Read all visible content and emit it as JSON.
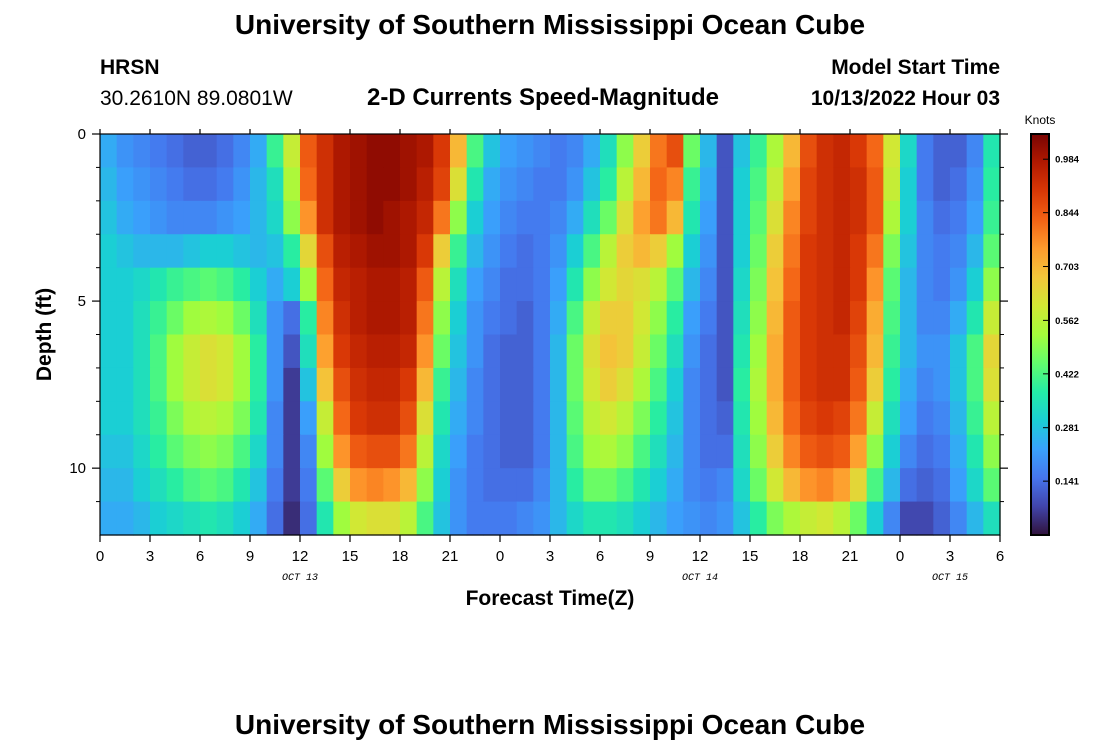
{
  "header": {
    "title": "University of Southern Mississippi Ocean Cube",
    "station_code": "HRSN",
    "coordinates": "30.2610N  89.0801W",
    "subtitle": "2-D Currents Speed-Magnitude",
    "model_start_label": "Model Start Time",
    "model_start_value": "10/13/2022 Hour 03"
  },
  "footer": {
    "title": "University of Southern Mississippi Ocean Cube"
  },
  "chart_data": {
    "type": "heatmap",
    "title": "2-D Currents Speed-Magnitude",
    "xlabel": "Forecast Time(Z)",
    "ylabel": "Depth (ft)",
    "x_unit": "hours since Oct 13 00Z",
    "xlim": [
      0,
      54
    ],
    "ylim": [
      12,
      0
    ],
    "x_tick_values": [
      0,
      3,
      6,
      9,
      12,
      15,
      18,
      21,
      24,
      27,
      30,
      33,
      36,
      39,
      42,
      45,
      48,
      51,
      54
    ],
    "x_tick_labels": [
      "0",
      "3",
      "6",
      "9",
      "12",
      "15",
      "18",
      "21",
      "0",
      "3",
      "6",
      "9",
      "12",
      "15",
      "18",
      "21",
      "0",
      "3",
      "6"
    ],
    "date_labels": [
      {
        "text": "OCT 13",
        "x": 12
      },
      {
        "text": "OCT 14",
        "x": 36
      },
      {
        "text": "OCT 15",
        "x": 51
      }
    ],
    "y_tick_values": [
      0,
      5,
      10
    ],
    "y_tick_labels": [
      "0",
      "5",
      "10"
    ],
    "y_minor_tick_values": [
      1,
      2,
      3,
      4,
      6,
      7,
      8,
      9,
      11
    ],
    "colorbar": {
      "label": "Knots",
      "min": 0.0,
      "max": 1.05,
      "ticks": [
        0.984,
        0.844,
        0.703,
        0.562,
        0.422,
        0.281,
        0.141
      ],
      "tick_labels": [
        "0.984",
        "0.844",
        "0.703",
        "0.562",
        "0.422",
        "0.281",
        "0.141"
      ],
      "colors": [
        "#30123b",
        "#4145ab",
        "#4675ed",
        "#39a2fc",
        "#1bcfd4",
        "#24eca6",
        "#61fc6c",
        "#a4fc3b",
        "#d1e834",
        "#f3c63a",
        "#fe9b2d",
        "#f36315",
        "#d93806",
        "#b11901",
        "#7a0402"
      ]
    },
    "time_columns": [
      0,
      1,
      2,
      3,
      4,
      5,
      6,
      7,
      8,
      9,
      10,
      11,
      12,
      13,
      14,
      15,
      16,
      17,
      18,
      19,
      20,
      21,
      22,
      23,
      24,
      25,
      26,
      27,
      28,
      29,
      30,
      31,
      32,
      33,
      34,
      35,
      36,
      37,
      38,
      39,
      40,
      41,
      42,
      43,
      44,
      45,
      46,
      47,
      48,
      49,
      50,
      51,
      52,
      53
    ],
    "depth_rows": [
      0,
      1,
      2,
      3,
      4,
      5,
      6,
      7,
      8,
      9,
      10,
      11
    ],
    "values": [
      [
        0.24,
        0.2,
        0.18,
        0.16,
        0.14,
        0.12,
        0.12,
        0.14,
        0.18,
        0.24,
        0.4,
        0.58,
        0.84,
        0.92,
        0.98,
        1,
        1.02,
        1.02,
        1,
        0.98,
        0.9,
        0.7,
        0.42,
        0.28,
        0.22,
        0.2,
        0.18,
        0.16,
        0.18,
        0.24,
        0.34,
        0.5,
        0.66,
        0.8,
        0.86,
        0.46,
        0.26,
        0.1,
        0.28,
        0.4,
        0.54,
        0.7,
        0.86,
        0.92,
        0.94,
        0.9,
        0.82,
        0.6,
        0.32,
        0.16,
        0.12,
        0.12,
        0.18,
        0.36
      ],
      [
        0.26,
        0.22,
        0.2,
        0.18,
        0.16,
        0.14,
        0.14,
        0.16,
        0.2,
        0.26,
        0.34,
        0.54,
        0.82,
        0.92,
        0.98,
        1,
        1.02,
        1.02,
        1,
        0.96,
        0.88,
        0.62,
        0.36,
        0.24,
        0.2,
        0.18,
        0.16,
        0.16,
        0.2,
        0.28,
        0.38,
        0.56,
        0.7,
        0.82,
        0.78,
        0.4,
        0.24,
        0.1,
        0.3,
        0.42,
        0.58,
        0.74,
        0.88,
        0.92,
        0.94,
        0.92,
        0.84,
        0.58,
        0.3,
        0.16,
        0.12,
        0.14,
        0.2,
        0.38
      ],
      [
        0.28,
        0.24,
        0.22,
        0.2,
        0.18,
        0.18,
        0.18,
        0.2,
        0.22,
        0.26,
        0.32,
        0.5,
        0.76,
        0.92,
        0.98,
        1,
        1.02,
        1,
        0.98,
        0.94,
        0.8,
        0.5,
        0.3,
        0.22,
        0.18,
        0.16,
        0.16,
        0.18,
        0.24,
        0.34,
        0.46,
        0.62,
        0.74,
        0.8,
        0.7,
        0.36,
        0.22,
        0.1,
        0.3,
        0.44,
        0.62,
        0.78,
        0.88,
        0.92,
        0.94,
        0.92,
        0.84,
        0.54,
        0.3,
        0.18,
        0.14,
        0.16,
        0.22,
        0.4
      ],
      [
        0.3,
        0.28,
        0.26,
        0.26,
        0.26,
        0.28,
        0.3,
        0.3,
        0.28,
        0.26,
        0.28,
        0.38,
        0.64,
        0.86,
        0.96,
        0.98,
        1,
        1,
        0.98,
        0.9,
        0.66,
        0.4,
        0.26,
        0.2,
        0.16,
        0.14,
        0.16,
        0.2,
        0.3,
        0.42,
        0.56,
        0.66,
        0.7,
        0.66,
        0.52,
        0.3,
        0.2,
        0.1,
        0.3,
        0.46,
        0.66,
        0.8,
        0.9,
        0.92,
        0.94,
        0.9,
        0.8,
        0.48,
        0.28,
        0.18,
        0.16,
        0.18,
        0.26,
        0.44
      ],
      [
        0.3,
        0.3,
        0.32,
        0.36,
        0.4,
        0.42,
        0.44,
        0.42,
        0.38,
        0.3,
        0.24,
        0.3,
        0.52,
        0.82,
        0.94,
        0.96,
        0.98,
        0.98,
        0.96,
        0.84,
        0.56,
        0.34,
        0.22,
        0.18,
        0.14,
        0.14,
        0.16,
        0.22,
        0.36,
        0.5,
        0.6,
        0.64,
        0.62,
        0.56,
        0.44,
        0.26,
        0.18,
        0.1,
        0.32,
        0.48,
        0.68,
        0.82,
        0.9,
        0.92,
        0.94,
        0.9,
        0.76,
        0.44,
        0.26,
        0.18,
        0.16,
        0.2,
        0.3,
        0.5
      ],
      [
        0.3,
        0.3,
        0.34,
        0.4,
        0.46,
        0.52,
        0.54,
        0.52,
        0.46,
        0.34,
        0.2,
        0.14,
        0.38,
        0.78,
        0.92,
        0.96,
        0.98,
        0.98,
        0.96,
        0.8,
        0.5,
        0.3,
        0.2,
        0.16,
        0.14,
        0.12,
        0.16,
        0.24,
        0.42,
        0.58,
        0.66,
        0.66,
        0.6,
        0.5,
        0.38,
        0.22,
        0.16,
        0.1,
        0.34,
        0.5,
        0.7,
        0.84,
        0.9,
        0.92,
        0.94,
        0.88,
        0.72,
        0.42,
        0.26,
        0.18,
        0.18,
        0.24,
        0.36,
        0.58
      ],
      [
        0.3,
        0.3,
        0.34,
        0.42,
        0.52,
        0.58,
        0.62,
        0.6,
        0.52,
        0.38,
        0.2,
        0.1,
        0.34,
        0.74,
        0.9,
        0.94,
        0.96,
        0.96,
        0.94,
        0.76,
        0.46,
        0.28,
        0.2,
        0.14,
        0.12,
        0.12,
        0.16,
        0.26,
        0.46,
        0.62,
        0.68,
        0.66,
        0.58,
        0.46,
        0.34,
        0.2,
        0.14,
        0.1,
        0.36,
        0.52,
        0.72,
        0.84,
        0.9,
        0.92,
        0.92,
        0.86,
        0.7,
        0.4,
        0.26,
        0.2,
        0.2,
        0.28,
        0.42,
        0.64
      ],
      [
        0.3,
        0.3,
        0.34,
        0.42,
        0.52,
        0.58,
        0.62,
        0.6,
        0.52,
        0.38,
        0.2,
        0.06,
        0.28,
        0.68,
        0.86,
        0.92,
        0.94,
        0.94,
        0.9,
        0.7,
        0.4,
        0.26,
        0.18,
        0.14,
        0.12,
        0.12,
        0.16,
        0.26,
        0.46,
        0.6,
        0.66,
        0.62,
        0.54,
        0.42,
        0.3,
        0.18,
        0.14,
        0.1,
        0.38,
        0.54,
        0.72,
        0.84,
        0.9,
        0.92,
        0.92,
        0.84,
        0.66,
        0.38,
        0.24,
        0.18,
        0.2,
        0.28,
        0.42,
        0.62
      ],
      [
        0.3,
        0.3,
        0.34,
        0.4,
        0.48,
        0.54,
        0.56,
        0.54,
        0.48,
        0.36,
        0.18,
        0.06,
        0.22,
        0.58,
        0.82,
        0.9,
        0.92,
        0.92,
        0.86,
        0.62,
        0.36,
        0.24,
        0.18,
        0.14,
        0.12,
        0.12,
        0.16,
        0.26,
        0.44,
        0.56,
        0.6,
        0.56,
        0.48,
        0.38,
        0.28,
        0.18,
        0.14,
        0.12,
        0.36,
        0.52,
        0.7,
        0.82,
        0.88,
        0.9,
        0.88,
        0.8,
        0.58,
        0.34,
        0.22,
        0.16,
        0.18,
        0.26,
        0.4,
        0.56
      ],
      [
        0.28,
        0.28,
        0.32,
        0.38,
        0.44,
        0.48,
        0.5,
        0.48,
        0.42,
        0.32,
        0.18,
        0.06,
        0.18,
        0.52,
        0.76,
        0.84,
        0.86,
        0.86,
        0.8,
        0.56,
        0.32,
        0.22,
        0.16,
        0.14,
        0.12,
        0.12,
        0.16,
        0.26,
        0.42,
        0.52,
        0.54,
        0.5,
        0.42,
        0.34,
        0.26,
        0.18,
        0.14,
        0.14,
        0.34,
        0.5,
        0.66,
        0.78,
        0.84,
        0.86,
        0.84,
        0.74,
        0.5,
        0.3,
        0.18,
        0.14,
        0.16,
        0.24,
        0.36,
        0.5
      ],
      [
        0.26,
        0.26,
        0.3,
        0.34,
        0.38,
        0.42,
        0.44,
        0.42,
        0.36,
        0.28,
        0.16,
        0.06,
        0.16,
        0.44,
        0.66,
        0.76,
        0.78,
        0.76,
        0.7,
        0.5,
        0.3,
        0.2,
        0.16,
        0.14,
        0.14,
        0.14,
        0.18,
        0.26,
        0.38,
        0.46,
        0.46,
        0.42,
        0.36,
        0.3,
        0.24,
        0.18,
        0.16,
        0.18,
        0.32,
        0.46,
        0.6,
        0.7,
        0.76,
        0.78,
        0.74,
        0.64,
        0.42,
        0.26,
        0.14,
        0.12,
        0.14,
        0.22,
        0.32,
        0.44
      ],
      [
        0.24,
        0.24,
        0.26,
        0.3,
        0.32,
        0.34,
        0.36,
        0.34,
        0.3,
        0.24,
        0.14,
        0.04,
        0.14,
        0.36,
        0.52,
        0.6,
        0.62,
        0.62,
        0.56,
        0.42,
        0.28,
        0.2,
        0.16,
        0.16,
        0.16,
        0.18,
        0.2,
        0.26,
        0.32,
        0.36,
        0.36,
        0.34,
        0.3,
        0.26,
        0.22,
        0.2,
        0.18,
        0.2,
        0.28,
        0.38,
        0.48,
        0.54,
        0.58,
        0.6,
        0.56,
        0.46,
        0.3,
        0.18,
        0.08,
        0.08,
        0.12,
        0.18,
        0.26,
        0.34
      ]
    ]
  }
}
